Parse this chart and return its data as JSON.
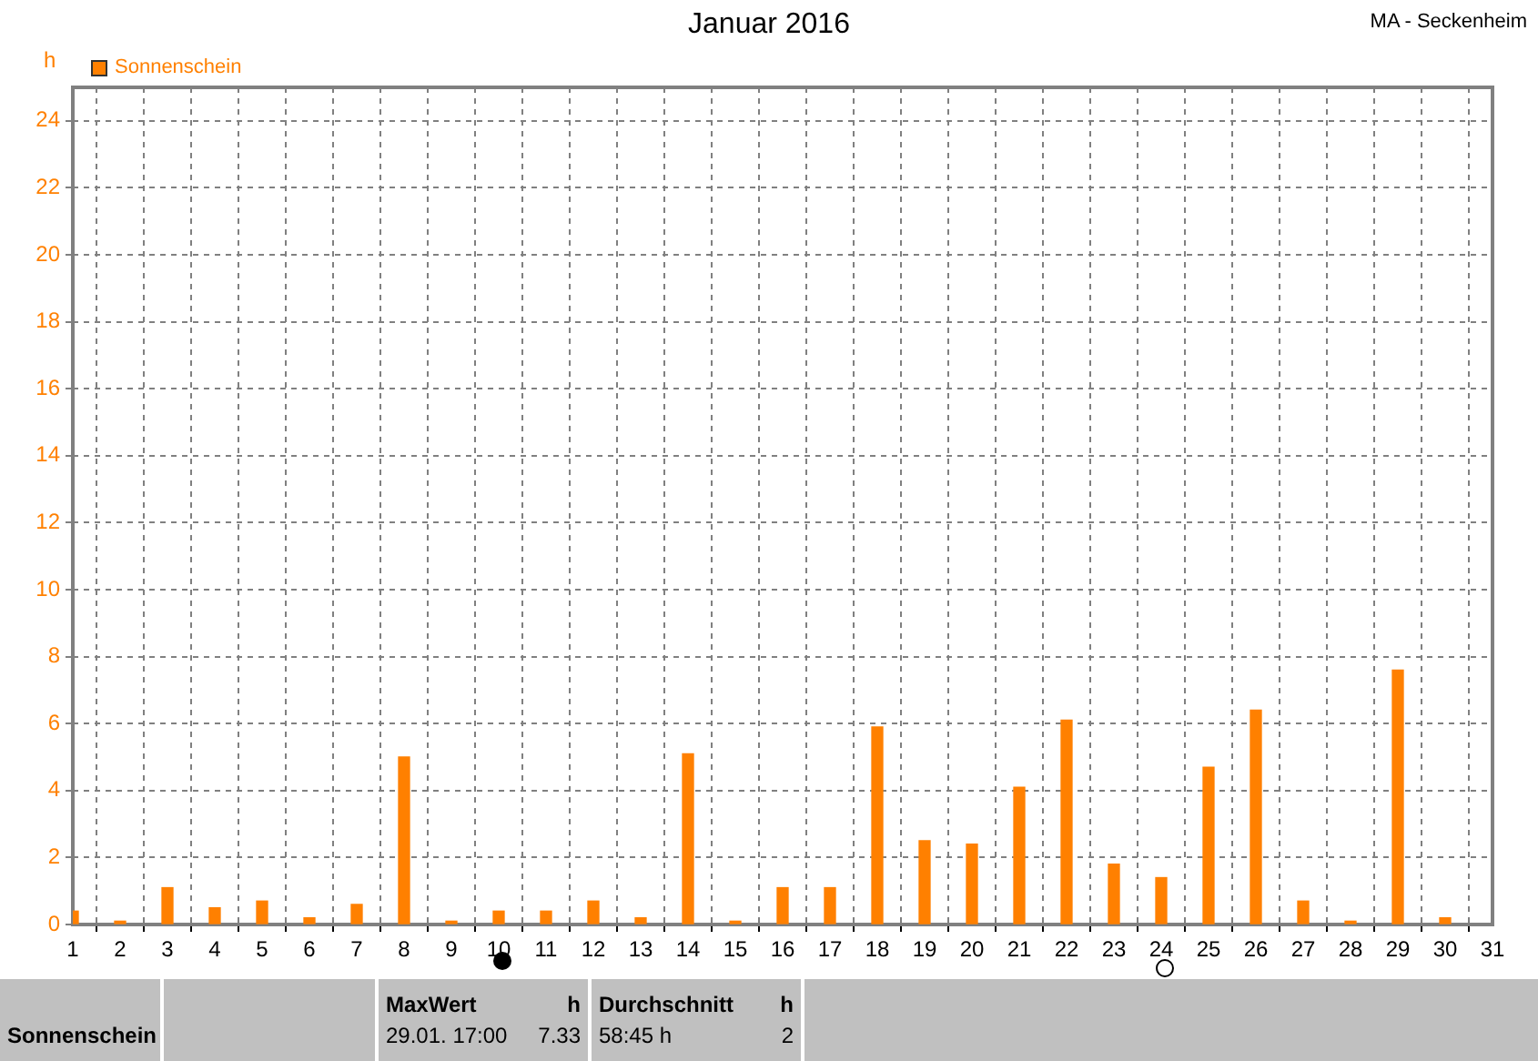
{
  "chart_data": {
    "type": "bar",
    "title": "Januar 2016",
    "subtitle": "MA - Seckenheim",
    "ylabel": "h",
    "x": [
      1,
      2,
      3,
      4,
      5,
      6,
      7,
      8,
      9,
      10,
      11,
      12,
      13,
      14,
      15,
      16,
      17,
      18,
      19,
      20,
      21,
      22,
      23,
      24,
      25,
      26,
      27,
      28,
      29,
      30
    ],
    "series": [
      {
        "name": "Sonnenschein",
        "color": "#ff8000",
        "values": [
          0.4,
          0.1,
          1.1,
          0.5,
          0.7,
          0.2,
          0.6,
          5.0,
          0.1,
          0.4,
          0.4,
          0.7,
          0.2,
          5.1,
          0.1,
          1.1,
          1.1,
          5.9,
          2.5,
          2.4,
          4.1,
          6.1,
          1.8,
          1.4,
          4.7,
          6.4,
          0.7,
          0.1,
          7.6,
          0.2
        ]
      }
    ],
    "xlim": [
      1,
      31
    ],
    "xticks": [
      1,
      2,
      3,
      4,
      5,
      6,
      7,
      8,
      9,
      10,
      11,
      12,
      13,
      14,
      15,
      16,
      17,
      18,
      19,
      20,
      21,
      22,
      23,
      24,
      25,
      26,
      27,
      28,
      29,
      30,
      31
    ],
    "ylim": [
      0,
      25
    ],
    "yticks": [
      0,
      2,
      4,
      6,
      8,
      10,
      12,
      14,
      16,
      18,
      20,
      22,
      24
    ],
    "grid": true,
    "legend": "top left",
    "annotations": [
      "Sonnenschein",
      "MaxWert",
      "h",
      "29.01.  17:00",
      "7.33",
      "Durchschnitt",
      "h",
      "58:45 h",
      "2"
    ]
  }
}
